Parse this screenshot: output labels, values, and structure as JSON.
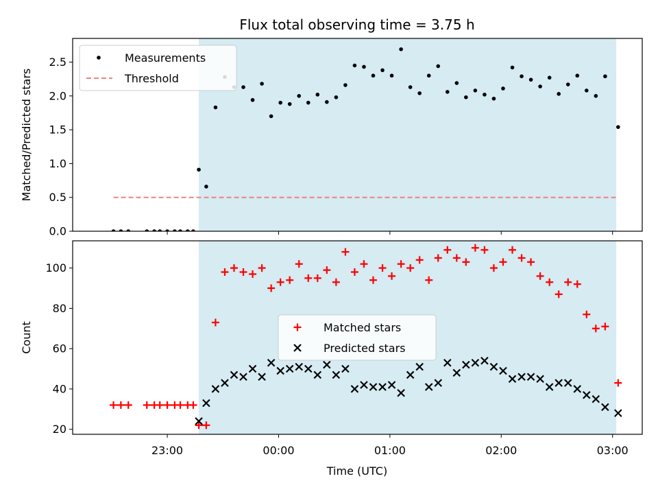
{
  "chart_data": {
    "type": "scatter",
    "title": "Flux total observing time = 3.75 h",
    "xlabel": "Time (UTC)",
    "x_unit": "hours UTC",
    "xlim": [
      "22:09",
      "03:16"
    ],
    "x_ticks": [
      "23:00",
      "00:00",
      "01:00",
      "02:00",
      "03:00"
    ],
    "observing_window": [
      "23:17",
      "03:02"
    ],
    "observing_window_color": "#add8e6",
    "panels": [
      {
        "ylabel": "Matched/Predicted stars",
        "ylim": [
          0,
          2.85
        ],
        "y_ticks": [
          "0.0",
          "0.5",
          "1.0",
          "1.5",
          "2.0",
          "2.5"
        ],
        "legend_position": "upper left",
        "series": [
          {
            "name": "Measurements",
            "color": "#000000",
            "marker": "dot",
            "points": [
              [
                "22:31",
                0.0
              ],
              [
                "22:35",
                0.0
              ],
              [
                "22:39",
                0.0
              ],
              [
                "22:49",
                0.0
              ],
              [
                "22:53",
                0.0
              ],
              [
                "22:56",
                0.0
              ],
              [
                "23:00",
                0.0
              ],
              [
                "23:04",
                0.0
              ],
              [
                "23:07",
                0.0
              ],
              [
                "23:11",
                0.0
              ],
              [
                "23:14",
                0.0
              ],
              [
                "23:17",
                0.91
              ],
              [
                "23:21",
                0.66
              ],
              [
                "23:26",
                1.83
              ],
              [
                "23:31",
                2.28
              ],
              [
                "23:36",
                2.13
              ],
              [
                "23:41",
                2.13
              ],
              [
                "23:46",
                1.94
              ],
              [
                "23:51",
                2.18
              ],
              [
                "23:56",
                1.7
              ],
              [
                "00:01",
                1.9
              ],
              [
                "00:06",
                1.88
              ],
              [
                "00:11",
                2.0
              ],
              [
                "00:16",
                1.9
              ],
              [
                "00:21",
                2.02
              ],
              [
                "00:26",
                1.91
              ],
              [
                "00:31",
                1.98
              ],
              [
                "00:36",
                2.16
              ],
              [
                "00:41",
                2.45
              ],
              [
                "00:46",
                2.43
              ],
              [
                "00:51",
                2.3
              ],
              [
                "00:56",
                2.38
              ],
              [
                "01:01",
                2.3
              ],
              [
                "01:06",
                2.69
              ],
              [
                "01:11",
                2.13
              ],
              [
                "01:16",
                2.04
              ],
              [
                "01:21",
                2.3
              ],
              [
                "01:26",
                2.44
              ],
              [
                "01:31",
                2.06
              ],
              [
                "01:36",
                2.19
              ],
              [
                "01:41",
                1.98
              ],
              [
                "01:46",
                2.08
              ],
              [
                "01:51",
                2.02
              ],
              [
                "01:56",
                1.96
              ],
              [
                "02:01",
                2.11
              ],
              [
                "02:06",
                2.42
              ],
              [
                "02:11",
                2.29
              ],
              [
                "02:16",
                2.24
              ],
              [
                "02:21",
                2.14
              ],
              [
                "02:26",
                2.27
              ],
              [
                "02:31",
                2.03
              ],
              [
                "02:36",
                2.17
              ],
              [
                "02:41",
                2.3
              ],
              [
                "02:46",
                2.08
              ],
              [
                "02:51",
                2.0
              ],
              [
                "02:56",
                2.29
              ],
              [
                "03:03",
                1.54
              ]
            ]
          },
          {
            "name": "Threshold",
            "color": "#f08080",
            "style": "dashed",
            "points": [
              [
                "22:31",
                0.5
              ],
              [
                "03:03",
                0.5
              ]
            ]
          }
        ]
      },
      {
        "ylabel": "Count",
        "ylim": [
          17.5,
          113.5
        ],
        "y_ticks": [
          "20",
          "40",
          "60",
          "80",
          "100"
        ],
        "legend_position": "center",
        "series": [
          {
            "name": "Matched stars",
            "color": "#ff0000",
            "marker": "plus",
            "points": [
              [
                "22:31",
                32
              ],
              [
                "22:35",
                32
              ],
              [
                "22:39",
                32
              ],
              [
                "22:49",
                32
              ],
              [
                "22:53",
                32
              ],
              [
                "22:56",
                32
              ],
              [
                "23:00",
                32
              ],
              [
                "23:04",
                32
              ],
              [
                "23:07",
                32
              ],
              [
                "23:11",
                32
              ],
              [
                "23:14",
                32
              ],
              [
                "23:17",
                22
              ],
              [
                "23:21",
                22
              ],
              [
                "23:26",
                73
              ],
              [
                "23:31",
                98
              ],
              [
                "23:36",
                100
              ],
              [
                "23:41",
                98
              ],
              [
                "23:46",
                97
              ],
              [
                "23:51",
                100
              ],
              [
                "23:56",
                90
              ],
              [
                "00:01",
                93
              ],
              [
                "00:06",
                94
              ],
              [
                "00:11",
                102
              ],
              [
                "00:16",
                95
              ],
              [
                "00:21",
                95
              ],
              [
                "00:26",
                99
              ],
              [
                "00:31",
                93
              ],
              [
                "00:36",
                108
              ],
              [
                "00:41",
                98
              ],
              [
                "00:46",
                102
              ],
              [
                "00:51",
                94
              ],
              [
                "00:56",
                100
              ],
              [
                "01:01",
                96
              ],
              [
                "01:06",
                102
              ],
              [
                "01:11",
                100
              ],
              [
                "01:16",
                104
              ],
              [
                "01:21",
                94
              ],
              [
                "01:26",
                105
              ],
              [
                "01:31",
                109
              ],
              [
                "01:36",
                105
              ],
              [
                "01:41",
                103
              ],
              [
                "01:46",
                110
              ],
              [
                "01:51",
                109
              ],
              [
                "01:56",
                100
              ],
              [
                "02:01",
                103
              ],
              [
                "02:06",
                109
              ],
              [
                "02:11",
                105
              ],
              [
                "02:16",
                103
              ],
              [
                "02:21",
                96
              ],
              [
                "02:26",
                93
              ],
              [
                "02:31",
                87
              ],
              [
                "02:36",
                93
              ],
              [
                "02:41",
                92
              ],
              [
                "02:46",
                77
              ],
              [
                "02:51",
                70
              ],
              [
                "02:56",
                71
              ],
              [
                "03:03",
                43
              ]
            ]
          },
          {
            "name": "Predicted stars",
            "color": "#000000",
            "marker": "x",
            "points": [
              [
                "23:17",
                24
              ],
              [
                "23:21",
                33
              ],
              [
                "23:26",
                40
              ],
              [
                "23:31",
                43
              ],
              [
                "23:36",
                47
              ],
              [
                "23:41",
                46
              ],
              [
                "23:46",
                50
              ],
              [
                "23:51",
                46
              ],
              [
                "23:56",
                53
              ],
              [
                "00:01",
                49
              ],
              [
                "00:06",
                50
              ],
              [
                "00:11",
                51
              ],
              [
                "00:16",
                50
              ],
              [
                "00:21",
                47
              ],
              [
                "00:26",
                52
              ],
              [
                "00:31",
                47
              ],
              [
                "00:36",
                50
              ],
              [
                "00:41",
                40
              ],
              [
                "00:46",
                42
              ],
              [
                "00:51",
                41
              ],
              [
                "00:56",
                41
              ],
              [
                "01:01",
                42
              ],
              [
                "01:06",
                38
              ],
              [
                "01:11",
                47
              ],
              [
                "01:16",
                51
              ],
              [
                "01:21",
                41
              ],
              [
                "01:26",
                43
              ],
              [
                "01:31",
                53
              ],
              [
                "01:36",
                48
              ],
              [
                "01:41",
                52
              ],
              [
                "01:46",
                53
              ],
              [
                "01:51",
                54
              ],
              [
                "01:56",
                51
              ],
              [
                "02:01",
                49
              ],
              [
                "02:06",
                45
              ],
              [
                "02:11",
                46
              ],
              [
                "02:16",
                46
              ],
              [
                "02:21",
                45
              ],
              [
                "02:26",
                41
              ],
              [
                "02:31",
                43
              ],
              [
                "02:36",
                43
              ],
              [
                "02:41",
                40
              ],
              [
                "02:46",
                37
              ],
              [
                "02:51",
                35
              ],
              [
                "02:56",
                31
              ],
              [
                "03:03",
                28
              ]
            ]
          }
        ]
      }
    ]
  }
}
